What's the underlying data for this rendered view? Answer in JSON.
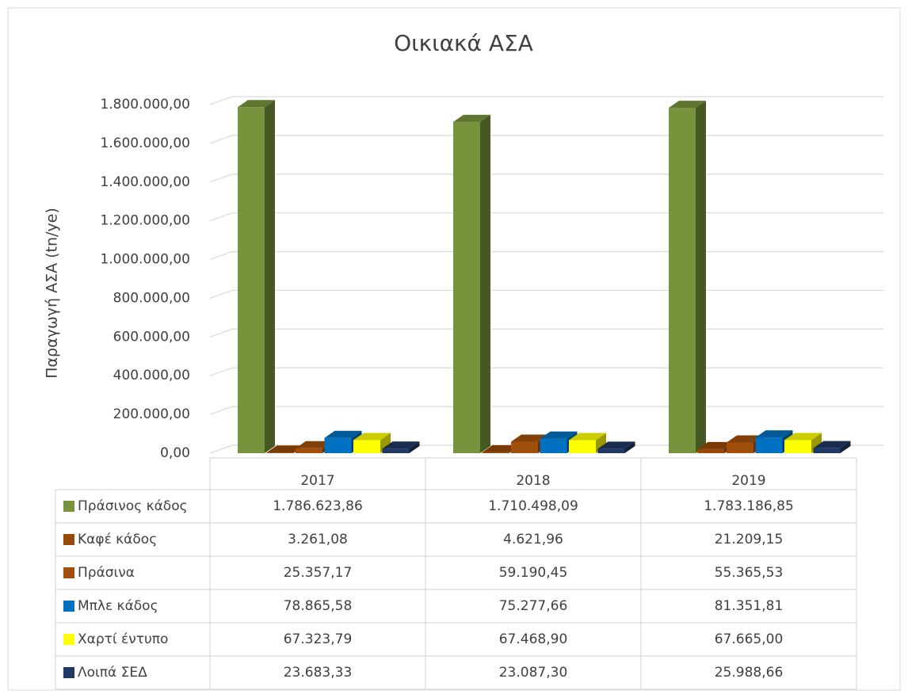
{
  "chart_data": {
    "type": "bar3d",
    "title": "Οικιακά ΑΣΑ",
    "y_label": "Παραγωγή ΑΣΑ (tn/ye)",
    "categories": [
      "2017",
      "2018",
      "2019"
    ],
    "series": [
      {
        "name": "Πράσινος κάδος",
        "color": "#77933c",
        "values": [
          1786623.86,
          1710498.09,
          1783186.85
        ],
        "value_labels": [
          "1.786.623,86",
          "1.710.498,09",
          "1.783.186,85"
        ]
      },
      {
        "name": "Καφέ κάδος",
        "color": "#984807",
        "values": [
          3261.08,
          4621.96,
          21209.15
        ],
        "value_labels": [
          "3.261,08",
          "4.621,96",
          "21.209,15"
        ]
      },
      {
        "name": "Πράσινα",
        "color": "#a0500a",
        "values": [
          25357.17,
          59190.45,
          55365.53
        ],
        "value_labels": [
          "25.357,17",
          "59.190,45",
          "55.365,53"
        ]
      },
      {
        "name": "Μπλε κάδος",
        "color": "#0070c0",
        "values": [
          78865.58,
          75277.66,
          81351.81
        ],
        "value_labels": [
          "78.865,58",
          "75.277,66",
          "81.351,81"
        ]
      },
      {
        "name": "Χαρτί έντυπο",
        "color": "#ffff00",
        "values": [
          67323.79,
          67468.9,
          67665.0
        ],
        "value_labels": [
          "67.323,79",
          "67.468,90",
          "67.665,00"
        ]
      },
      {
        "name": "Λοιπά ΣΕΔ",
        "color": "#1f3864",
        "values": [
          23683.33,
          23087.3,
          25988.66
        ],
        "value_labels": [
          "23.683,33",
          "23.087,30",
          "25.988,66"
        ]
      }
    ],
    "ylim": [
      0,
      1800000
    ],
    "yticks": [
      {
        "value": 0,
        "label": "0,00"
      },
      {
        "value": 200000,
        "label": "200.000,00"
      },
      {
        "value": 400000,
        "label": "400.000,00"
      },
      {
        "value": 600000,
        "label": "600.000,00"
      },
      {
        "value": 800000,
        "label": "800.000,00"
      },
      {
        "value": 1000000,
        "label": "1.000.000,00"
      },
      {
        "value": 1200000,
        "label": "1.200.000,00"
      },
      {
        "value": 1400000,
        "label": "1.400.000,00"
      },
      {
        "value": 1600000,
        "label": "1.600.000,00"
      },
      {
        "value": 1800000,
        "label": "1.800.000,00"
      }
    ],
    "grid": true
  }
}
